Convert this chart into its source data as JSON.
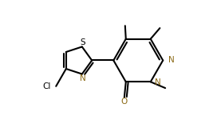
{
  "bg_color": "#ffffff",
  "line_color": "#000000",
  "n_color": "#8B6914",
  "o_color": "#8B6914",
  "line_width": 1.5,
  "figsize": [
    2.72,
    1.5
  ],
  "dpi": 100,
  "xlim": [
    -0.05,
    2.72
  ],
  "ylim": [
    -0.05,
    1.5
  ]
}
